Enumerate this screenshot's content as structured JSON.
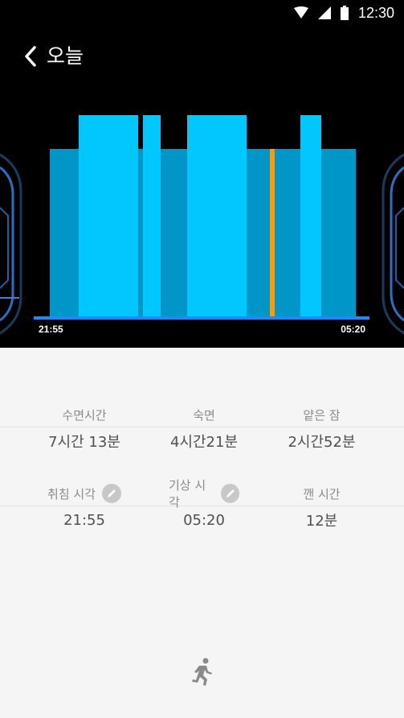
{
  "status_bar": {
    "time": "12:30",
    "icons": [
      "wifi-icon",
      "signal-icon",
      "battery-icon"
    ]
  },
  "app_bar": {
    "title": "오늘",
    "back_icon": "chevron-left-icon"
  },
  "chart": {
    "start_time": "21:55",
    "end_time": "05:20",
    "colors": {
      "deep": "#00c8ff",
      "light": "#0096c8",
      "awake": "#ff9a00",
      "baseline": "#1e88ff"
    }
  },
  "stats": {
    "sleep_time": {
      "label": "수면시간",
      "value": "7시간 13분"
    },
    "deep_sleep": {
      "label": "숙면",
      "value": "4시간21분"
    },
    "light_sleep": {
      "label": "얕은 잠",
      "value": "2시간52분"
    },
    "bed_time": {
      "label": "취침 시각",
      "value": "21:55",
      "edit_icon": "pencil-icon"
    },
    "wake_time": {
      "label": "기상 시각",
      "value": "05:20",
      "edit_icon": "pencil-icon"
    },
    "awake_time": {
      "label": "깬 시간",
      "value": "12분"
    }
  },
  "footer": {
    "icon": "running-icon"
  }
}
